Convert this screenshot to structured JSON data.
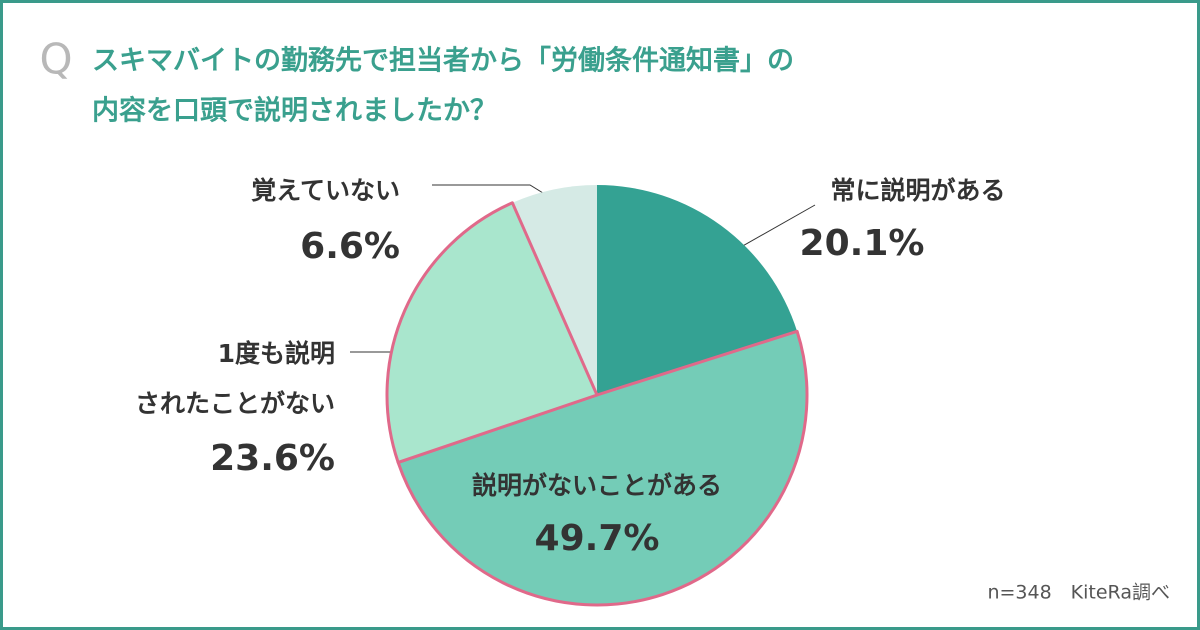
{
  "chart_data": {
    "type": "pie",
    "question_mark": "Q",
    "title": [
      "スキマバイトの勤務先で担当者から「労働条件通知書」の",
      "内容を口頭で説明されましたか？"
    ],
    "categories": [
      "常に説明がある",
      "説明がないことがある",
      "1度も説明\nされたことがない",
      "覚えていない"
    ],
    "values": [
      20.1,
      49.7,
      23.6,
      6.6
    ],
    "value_labels": [
      "20.1%",
      "49.7%",
      "23.6%",
      "6.6%"
    ],
    "colors": [
      "#34a293",
      "#74ccb7",
      "#a9e6cd",
      "#d5eae5"
    ],
    "note": "n=348　KiteRa調べ"
  }
}
